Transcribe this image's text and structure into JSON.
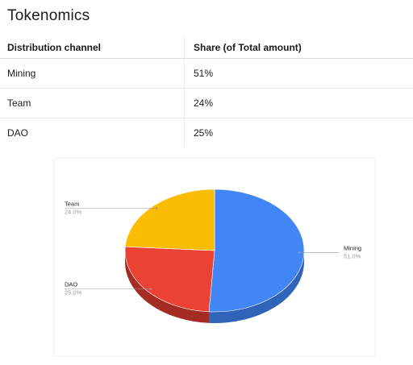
{
  "page": {
    "title": "Tokenomics"
  },
  "table": {
    "headers": [
      "Distribution channel",
      "Share (of Total amount)"
    ],
    "rows": [
      {
        "channel": "Mining",
        "share": "51%"
      },
      {
        "channel": "Team",
        "share": "24%"
      },
      {
        "channel": "DAO",
        "share": "25%"
      }
    ]
  },
  "chart_data": {
    "type": "pie",
    "title": "",
    "slices": [
      {
        "label": "Mining",
        "value": 51.0,
        "display": "51.0%",
        "color": "#4285f4",
        "side_color": "#2f64b8"
      },
      {
        "label": "DAO",
        "value": 25.0,
        "display": "25.0%",
        "color": "#ea4335",
        "side_color": "#a42c22"
      },
      {
        "label": "Team",
        "value": 24.0,
        "display": "24.0%",
        "color": "#fbbc04",
        "side_color": "#c08f00"
      }
    ],
    "three_d": true,
    "legend": "labeled"
  }
}
